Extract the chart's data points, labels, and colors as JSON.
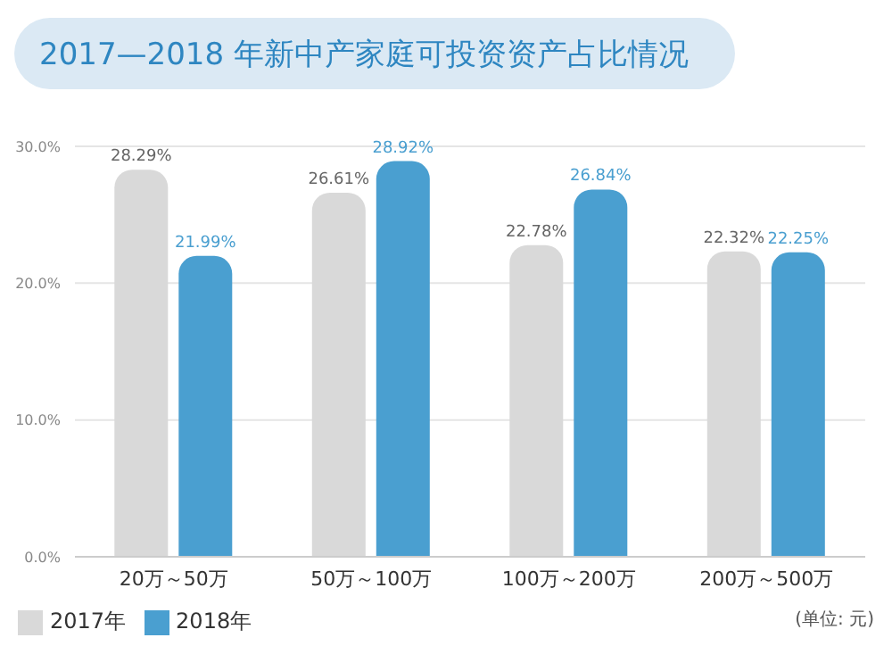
{
  "chart_data": {
    "type": "bar",
    "title": "2017—2018 年新中产家庭可投资资产占比情况",
    "categories": [
      "20万～50万",
      "50万～100万",
      "100万～200万",
      "200万～500万"
    ],
    "series": [
      {
        "name": "2017年",
        "color": "#d9d9d9",
        "values": [
          28.29,
          26.61,
          22.78,
          22.32
        ],
        "value_labels": [
          "28.29%",
          "26.61%",
          "22.78%",
          "22.32%"
        ]
      },
      {
        "name": "2018年",
        "color": "#4a9fd0",
        "values": [
          21.99,
          28.92,
          26.84,
          22.25
        ],
        "value_labels": [
          "21.99%",
          "28.92%",
          "26.84%",
          "22.25%"
        ]
      }
    ],
    "ylim": [
      0,
      30
    ],
    "yticks": [
      {
        "value": 0,
        "label": "0.0%"
      },
      {
        "value": 10,
        "label": "10.0%"
      },
      {
        "value": 20,
        "label": "20.0%"
      },
      {
        "value": 30,
        "label": "30.0%"
      }
    ],
    "grid": "y",
    "legend": "bottom left",
    "annotations": [
      "(单位: 元)"
    ]
  }
}
